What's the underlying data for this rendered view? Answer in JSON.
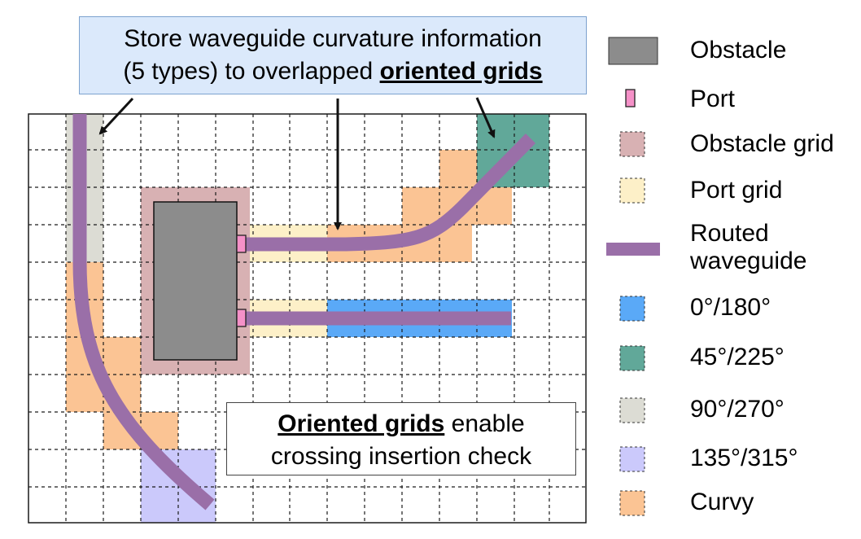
{
  "callout_top": {
    "line1": "Store waveguide curvature information",
    "line2_prefix": "(5 types) to overlapped ",
    "line2_emph": "oriented grids"
  },
  "callout_bottom": {
    "line1_emph": "Oriented grids",
    "line1_suffix": " enable",
    "line2": "crossing insertion check"
  },
  "legend": {
    "obstacle": "Obstacle",
    "port": "Port",
    "obstacle_grid": "Obstacle grid",
    "port_grid": "Port grid",
    "routed_line1": "Routed",
    "routed_line2": "waveguide",
    "deg_0_180": "0°/180°",
    "deg_45_225": "45°/225°",
    "deg_90_270": "90°/270°",
    "deg_135_315": "135°/315°",
    "curvy": "Curvy"
  },
  "colors": {
    "obstacle": "#8c8c8c",
    "port": "#f591c8",
    "obstacle_grid": "#d8b1b3",
    "port_grid": "#fdf0c8",
    "waveguide": "#9a6fa8",
    "deg_0_180": "#5aa9f7",
    "deg_45_225": "#61a899",
    "deg_90_270": "#dcdcd4",
    "deg_135_315": "#cbc9fb",
    "curvy": "#fbc494"
  }
}
